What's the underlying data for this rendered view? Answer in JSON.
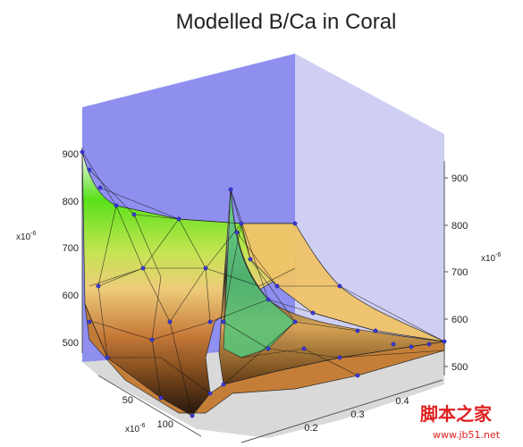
{
  "chart_data": {
    "type": "surface3d",
    "title": "Modelled B/Ca in Coral",
    "z_axis_left": {
      "multiplier_label": "x10",
      "multiplier_exponent": "-6",
      "ticks": [
        "900",
        "800",
        "700",
        "600",
        "500"
      ]
    },
    "z_axis_right": {
      "multiplier_label": "x10",
      "multiplier_exponent": "-6",
      "ticks": [
        "900",
        "800",
        "700",
        "600",
        "500"
      ]
    },
    "y_axis": {
      "multiplier_label": "x10",
      "multiplier_exponent": "-6",
      "ticks": [
        "50",
        "100"
      ]
    },
    "x_axis": {
      "ticks": [
        "0.2",
        "0.3",
        "0.4"
      ]
    },
    "zlim": [
      460,
      980
    ],
    "colormap": "terrain",
    "surface_points_note": "",
    "watermark_main": "脚本之家",
    "watermark_sub": "www.jb51.net"
  }
}
